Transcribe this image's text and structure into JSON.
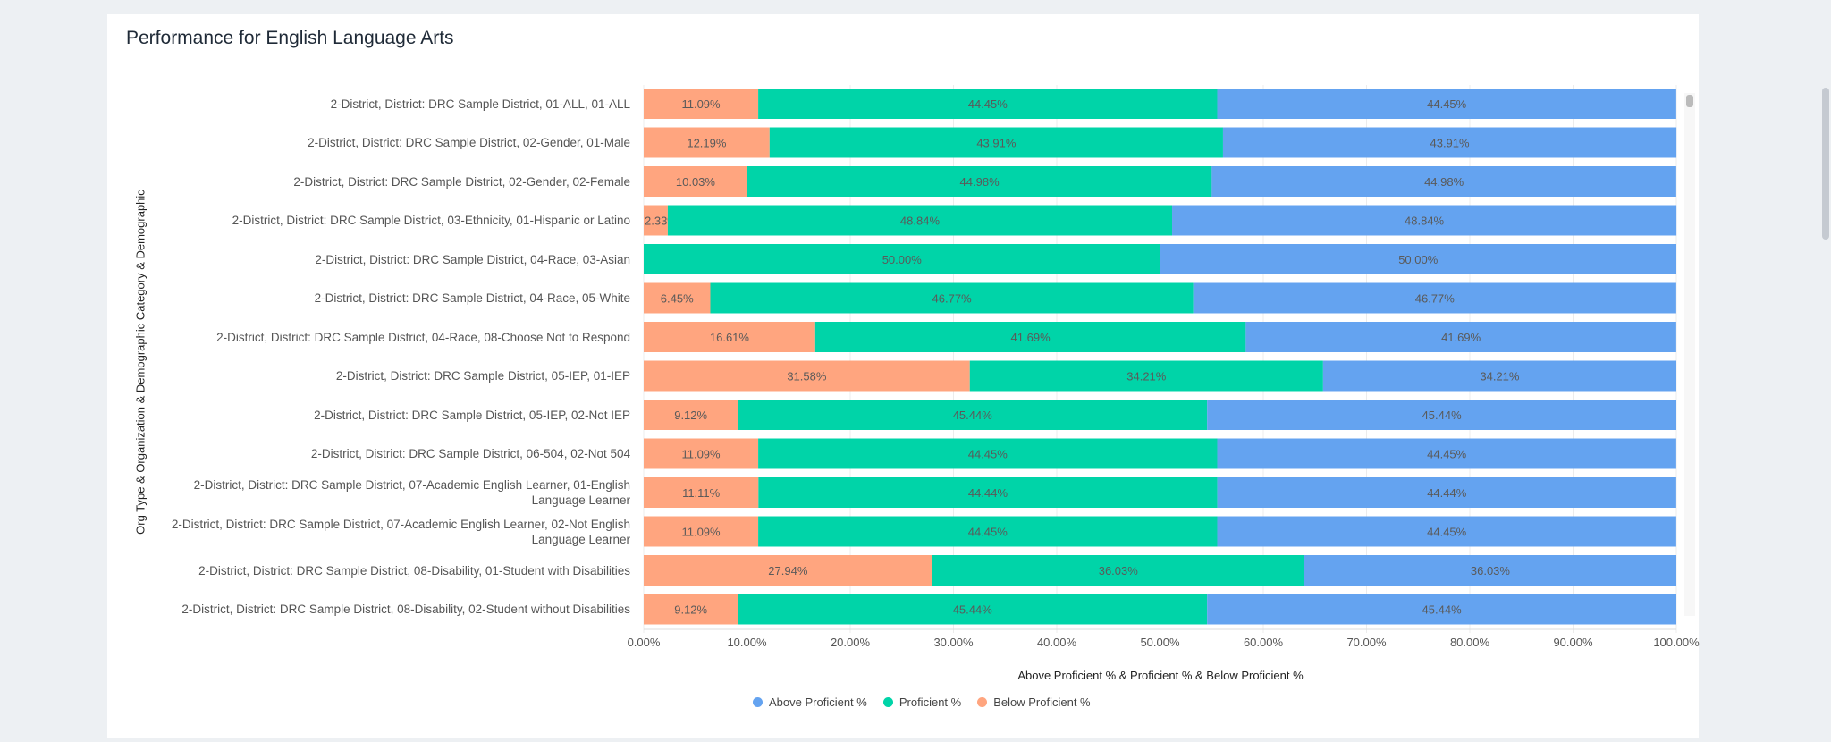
{
  "title": "Performance for English Language Arts",
  "chart_data": {
    "type": "bar",
    "orientation": "horizontal",
    "stacked": true,
    "title": "Performance for English Language Arts",
    "xlabel": "Above Proficient % & Proficient % & Below Proficient %",
    "ylabel": "Org Type & Organization & Demographic Category & Demographic",
    "xlim": [
      0,
      100
    ],
    "xticks": [
      "0.00%",
      "10.00%",
      "20.00%",
      "30.00%",
      "40.00%",
      "50.00%",
      "60.00%",
      "70.00%",
      "80.00%",
      "90.00%",
      "100.00%"
    ],
    "grid": true,
    "legend_position": "bottom",
    "categories": [
      "2-District, District: DRC Sample District, 01-ALL, 01-ALL",
      "2-District, District: DRC Sample District, 02-Gender, 01-Male",
      "2-District, District: DRC Sample District, 02-Gender, 02-Female",
      "2-District, District: DRC Sample District, 03-Ethnicity, 01-Hispanic or Latino",
      "2-District, District: DRC Sample District, 04-Race, 03-Asian",
      "2-District, District: DRC Sample District, 04-Race, 05-White",
      "2-District, District: DRC Sample District, 04-Race, 08-Choose Not to Respond",
      "2-District, District: DRC Sample District, 05-IEP, 01-IEP",
      "2-District, District: DRC Sample District, 05-IEP, 02-Not IEP",
      "2-District, District: DRC Sample District, 06-504, 02-Not 504",
      "2-District, District: DRC Sample District, 07-Academic English Learner, 01-English Language Learner",
      "2-District, District: DRC Sample District, 07-Academic English Learner, 02-Not English Language Learner",
      "2-District, District: DRC Sample District, 08-Disability, 01-Student with Disabilities",
      "2-District, District: DRC Sample District, 08-Disability, 02-Student without Disabilities"
    ],
    "series": [
      {
        "name": "Below Proficient %",
        "color": "#ffa57f",
        "values": [
          11.09,
          12.19,
          10.03,
          2.33,
          0.0,
          6.45,
          16.61,
          31.58,
          9.12,
          11.09,
          11.11,
          11.09,
          27.94,
          9.12
        ]
      },
      {
        "name": "Proficient %",
        "color": "#00d4a8",
        "values": [
          44.45,
          43.91,
          44.98,
          48.84,
          50.0,
          46.77,
          41.69,
          34.21,
          45.44,
          44.45,
          44.44,
          44.45,
          36.03,
          45.44
        ]
      },
      {
        "name": "Above Proficient %",
        "color": "#64a3f0",
        "values": [
          44.45,
          43.91,
          44.98,
          48.84,
          50.0,
          46.77,
          41.69,
          34.21,
          45.44,
          44.45,
          44.44,
          44.45,
          36.03,
          45.44
        ]
      }
    ],
    "legend_order": [
      "Above Proficient %",
      "Proficient %",
      "Below Proficient %"
    ]
  }
}
